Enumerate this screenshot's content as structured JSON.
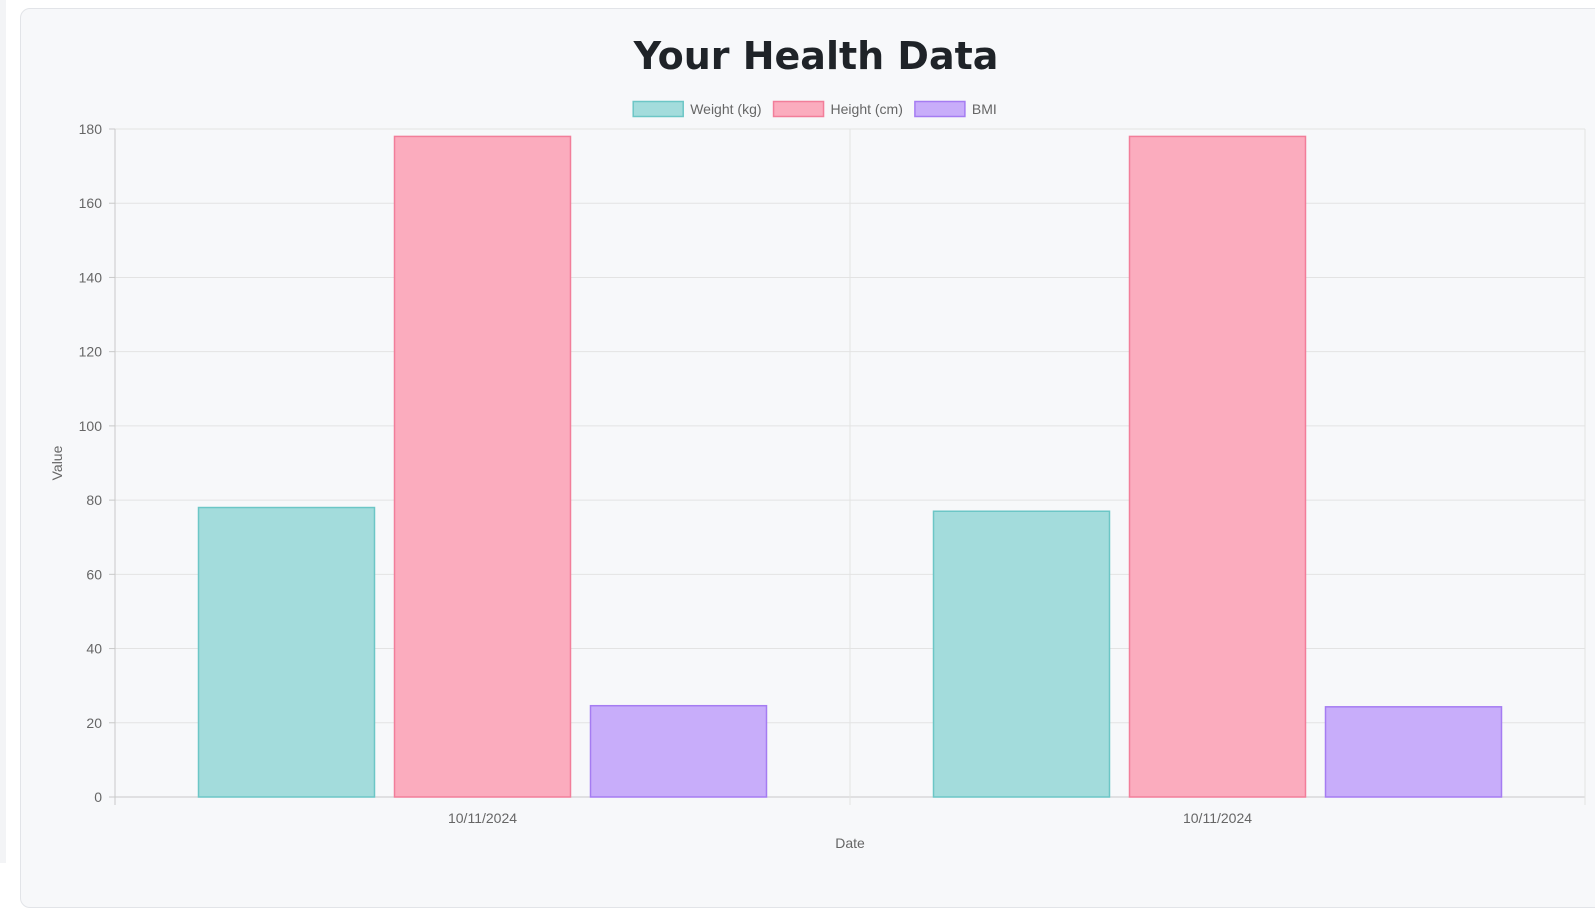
{
  "page": {
    "title": "Your Health Data"
  },
  "chart_data": {
    "type": "bar",
    "title": "Your Health Data",
    "xlabel": "Date",
    "ylabel": "Value",
    "categories": [
      "10/11/2024",
      "10/11/2024"
    ],
    "ylim": [
      0,
      180
    ],
    "yticks": [
      0,
      20,
      40,
      60,
      80,
      100,
      120,
      140,
      160,
      180
    ],
    "grid": true,
    "legend_position": "top-center",
    "series": [
      {
        "name": "Weight (kg)",
        "values": [
          78,
          77
        ],
        "fill": "#a3dcdc",
        "stroke": "#6cc6c6"
      },
      {
        "name": "Height (cm)",
        "values": [
          178,
          178
        ],
        "fill": "#fbacbe",
        "stroke": "#f27e9a"
      },
      {
        "name": "BMI",
        "values": [
          24.6,
          24.3
        ],
        "fill": "#c8adfa",
        "stroke": "#a57cf2"
      }
    ]
  }
}
